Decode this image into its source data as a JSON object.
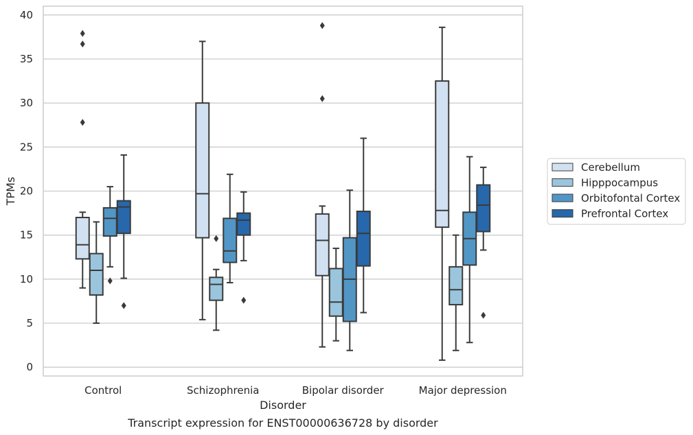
{
  "chart_data": {
    "type": "box",
    "caption": "Transcript expression for ENST00000636728 by disorder",
    "xlabel": "Disorder",
    "ylabel": "TPMs",
    "ylim": [
      -1,
      41
    ],
    "yticks": [
      0,
      5,
      10,
      15,
      20,
      25,
      30,
      35,
      40
    ],
    "grid": "horizontal",
    "legend_position": "right",
    "categories": [
      "Control",
      "Schizophrenia",
      "Bipolar disorder",
      "Major depression"
    ],
    "series": [
      {
        "name": "Cerebellum",
        "color": "#d2e1f1",
        "boxes": [
          {
            "min": 9.0,
            "q1": 12.3,
            "median": 13.9,
            "q3": 17.0,
            "max": 17.6,
            "outliers": [
              27.8,
              36.7,
              37.9
            ]
          },
          {
            "min": 5.4,
            "q1": 14.7,
            "median": 19.7,
            "q3": 30.0,
            "max": 37.0,
            "outliers": []
          },
          {
            "min": 2.3,
            "q1": 10.4,
            "median": 14.4,
            "q3": 17.4,
            "max": 18.3,
            "outliers": [
              30.5,
              38.8
            ]
          },
          {
            "min": 0.8,
            "q1": 15.9,
            "median": 17.8,
            "q3": 32.5,
            "max": 38.6,
            "outliers": []
          }
        ]
      },
      {
        "name": "Hipppocampus",
        "color": "#9ac5dd",
        "boxes": [
          {
            "min": 5.0,
            "q1": 8.2,
            "median": 11.0,
            "q3": 12.9,
            "max": 16.5,
            "outliers": []
          },
          {
            "min": 4.2,
            "q1": 7.6,
            "median": 9.4,
            "q3": 10.2,
            "max": 11.1,
            "outliers": [
              14.6
            ]
          },
          {
            "min": 3.0,
            "q1": 5.8,
            "median": 7.4,
            "q3": 11.2,
            "max": 13.5,
            "outliers": []
          },
          {
            "min": 1.9,
            "q1": 7.1,
            "median": 8.8,
            "q3": 11.4,
            "max": 15.0,
            "outliers": []
          }
        ]
      },
      {
        "name": "Orbitofontal Cortex",
        "color": "#5296c5",
        "boxes": [
          {
            "min": 11.4,
            "q1": 14.9,
            "median": 16.9,
            "q3": 18.1,
            "max": 20.5,
            "outliers": [
              9.8
            ]
          },
          {
            "min": 9.6,
            "q1": 11.9,
            "median": 13.2,
            "q3": 16.9,
            "max": 21.9,
            "outliers": []
          },
          {
            "min": 1.9,
            "q1": 5.2,
            "median": 10.0,
            "q3": 14.7,
            "max": 20.1,
            "outliers": []
          },
          {
            "min": 2.8,
            "q1": 11.6,
            "median": 14.6,
            "q3": 17.6,
            "max": 23.9,
            "outliers": []
          }
        ]
      },
      {
        "name": "Prefrontal Cortex",
        "color": "#2767ab",
        "boxes": [
          {
            "min": 10.1,
            "q1": 15.2,
            "median": 18.2,
            "q3": 18.9,
            "max": 24.1,
            "outliers": [
              7.0
            ]
          },
          {
            "min": 12.1,
            "q1": 15.0,
            "median": 16.7,
            "q3": 17.5,
            "max": 19.9,
            "outliers": [
              7.6
            ]
          },
          {
            "min": 6.2,
            "q1": 11.5,
            "median": 15.2,
            "q3": 17.7,
            "max": 26.0,
            "outliers": []
          },
          {
            "min": 13.3,
            "q1": 15.4,
            "median": 18.4,
            "q3": 20.7,
            "max": 22.7,
            "outliers": [
              5.9
            ]
          }
        ]
      }
    ]
  }
}
